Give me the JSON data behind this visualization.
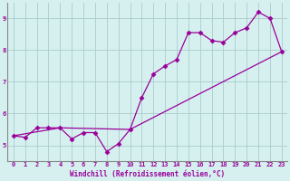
{
  "xlabel": "Windchill (Refroidissement éolien,°C)",
  "bg_color": "#d6f0f0",
  "line_color": "#990099",
  "grid_color": "#aacccc",
  "axis_color": "#888888",
  "xlim": [
    -0.5,
    23.5
  ],
  "ylim": [
    4.5,
    9.5
  ],
  "yticks": [
    5,
    6,
    7,
    8,
    9
  ],
  "xticks": [
    0,
    1,
    2,
    3,
    4,
    5,
    6,
    7,
    8,
    9,
    10,
    11,
    12,
    13,
    14,
    15,
    16,
    17,
    18,
    19,
    20,
    21,
    22,
    23
  ],
  "series1_x": [
    0,
    1,
    2,
    3,
    4,
    5,
    6,
    7,
    8,
    9,
    10,
    11,
    12,
    13,
    14,
    15,
    16,
    17,
    18,
    19,
    20,
    21,
    22,
    23
  ],
  "series1_y": [
    5.3,
    5.25,
    5.55,
    5.55,
    5.55,
    5.2,
    5.4,
    5.4,
    4.8,
    5.05,
    5.5,
    6.5,
    7.25,
    7.5,
    7.7,
    8.55,
    8.55,
    8.3,
    8.25,
    8.55,
    8.7,
    9.2,
    9.0,
    7.95
  ],
  "series2_x": [
    0,
    4,
    10,
    23
  ],
  "series2_y": [
    5.3,
    5.55,
    5.5,
    7.95
  ],
  "marker": "D",
  "markersize": 2.5,
  "linewidth": 0.9,
  "tick_fontsize": 5,
  "xlabel_fontsize": 5.5
}
